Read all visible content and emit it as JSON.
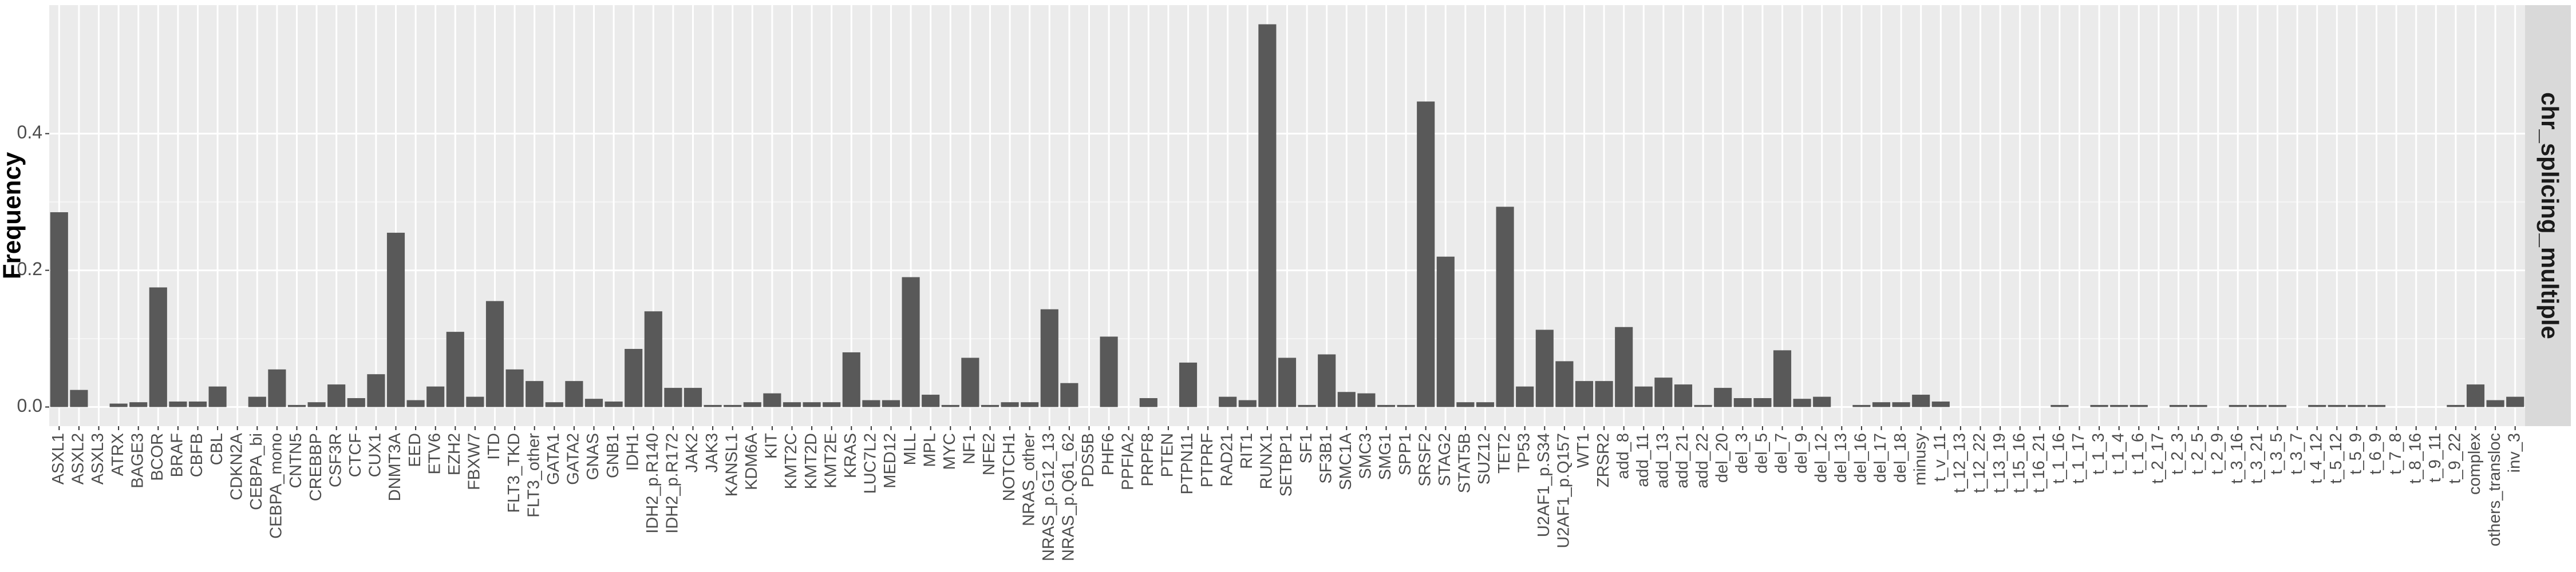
{
  "chart_data": {
    "type": "bar",
    "y_label": "Frequency",
    "facet": "chr_splicing_multiple",
    "categories": [
      "ASXL1",
      "ASXL2",
      "ASXL3",
      "ATRX",
      "BAGE3",
      "BCOR",
      "BRAF",
      "CBFB",
      "CBL",
      "CDKN2A",
      "CEBPA_bi",
      "CEBPA_mono",
      "CNTN5",
      "CREBBP",
      "CSF3R",
      "CTCF",
      "CUX1",
      "DNMT3A",
      "EED",
      "ETV6",
      "EZH2",
      "FBXW7",
      "ITD",
      "FLT3_TKD",
      "FLT3_other",
      "GATA1",
      "GATA2",
      "GNAS",
      "GNB1",
      "IDH1",
      "IDH2_p.R140",
      "IDH2_p.R172",
      "JAK2",
      "JAK3",
      "KANSL1",
      "KDM6A",
      "KIT",
      "KMT2C",
      "KMT2D",
      "KMT2E",
      "KRAS",
      "LUC7L2",
      "MED12",
      "MLL",
      "MPL",
      "MYC",
      "NF1",
      "NFE2",
      "NOTCH1",
      "NRAS_other",
      "NRAS_p.G12_13",
      "NRAS_p.Q61_62",
      "PDS5B",
      "PHF6",
      "PPFIA2",
      "PRPF8",
      "PTEN",
      "PTPN11",
      "PTPRF",
      "RAD21",
      "RIT1",
      "RUNX1",
      "SETBP1",
      "SF1",
      "SF3B1",
      "SMC1A",
      "SMC3",
      "SMG1",
      "SPP1",
      "SRSF2",
      "STAG2",
      "STAT5B",
      "SUZ12",
      "TET2",
      "TP53",
      "U2AF1_p.S34",
      "U2AF1_p.Q157",
      "WT1",
      "ZRSR2",
      "add_8",
      "add_11",
      "add_13",
      "add_21",
      "add_22",
      "del_20",
      "del_3",
      "del_5",
      "del_7",
      "del_9",
      "del_12",
      "del_13",
      "del_16",
      "del_17",
      "del_18",
      "minusy",
      "t_v_11",
      "t_12_13",
      "t_12_22",
      "t_13_19",
      "t_15_16",
      "t_16_21",
      "t_1_16",
      "t_1_17",
      "t_1_3",
      "t_1_4",
      "t_1_6",
      "t_2_17",
      "t_2_3",
      "t_2_5",
      "t_2_9",
      "t_3_16",
      "t_3_21",
      "t_3_5",
      "t_3_7",
      "t_4_12",
      "t_5_12",
      "t_5_9",
      "t_6_9",
      "t_7_8",
      "t_8_16",
      "t_9_11",
      "t_9_22",
      "complex",
      "others_transloc",
      "inv_3"
    ],
    "values": [
      0.285,
      0.025,
      0,
      0.005,
      0.007,
      0.175,
      0.008,
      0.008,
      0.03,
      0,
      0.015,
      0.055,
      0.003,
      0.007,
      0.033,
      0.013,
      0.048,
      0.255,
      0.01,
      0.03,
      0.11,
      0.015,
      0.155,
      0.055,
      0.038,
      0.007,
      0.038,
      0.012,
      0.008,
      0.085,
      0.14,
      0.028,
      0.028,
      0.003,
      0.003,
      0.007,
      0.02,
      0.007,
      0.007,
      0.007,
      0.08,
      0.01,
      0.01,
      0.19,
      0.018,
      0.003,
      0.072,
      0.003,
      0.007,
      0.007,
      0.143,
      0.035,
      0,
      0.103,
      0,
      0.013,
      0,
      0.065,
      0,
      0.015,
      0.01,
      0.56,
      0.072,
      0.003,
      0.077,
      0.022,
      0.02,
      0.003,
      0.003,
      0.447,
      0.22,
      0.007,
      0.007,
      0.293,
      0.03,
      0.113,
      0.067,
      0.038,
      0.038,
      0.117,
      0.03,
      0.043,
      0.033,
      0.003,
      0.028,
      0.013,
      0.013,
      0.083,
      0.012,
      0.015,
      0,
      0.003,
      0.007,
      0.007,
      0.018,
      0.008,
      0,
      0,
      0,
      0,
      0,
      0.003,
      0,
      0.003,
      0.003,
      0.003,
      0,
      0.003,
      0.003,
      0,
      0.003,
      0.003,
      0.003,
      0,
      0.003,
      0.003,
      0.003,
      0.003,
      0,
      0,
      0,
      0.003,
      0.033,
      0.01,
      0.015
    ],
    "color": "#595959",
    "ylim": [
      -0.028,
      0.588
    ],
    "yticks": [
      {
        "value": 0,
        "label": "0.0"
      },
      0.2,
      0.4
    ],
    "grid": true
  }
}
